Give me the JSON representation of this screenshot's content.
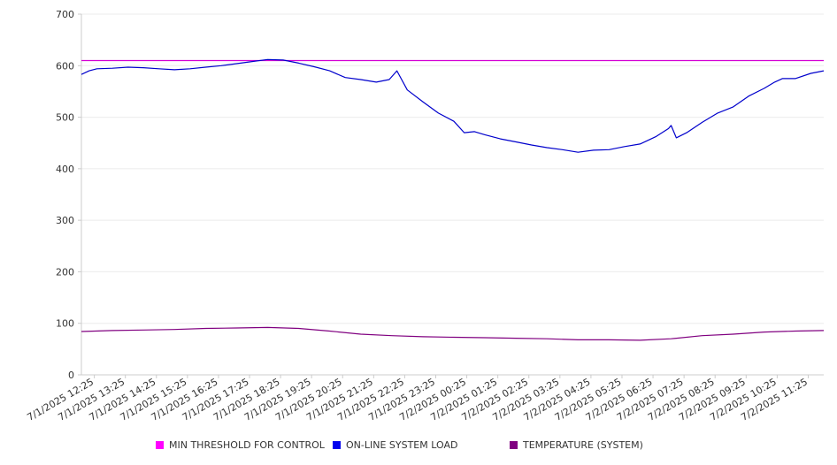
{
  "chart_data": {
    "type": "line",
    "title": "",
    "xlabel": "",
    "ylabel": "",
    "ylim": [
      0,
      700
    ],
    "yticks": [
      0,
      100,
      200,
      300,
      400,
      500,
      600,
      700
    ],
    "grid": true,
    "legend_position": "bottom",
    "x_tick_labels": [
      "7/1/2025 12:25",
      "7/1/2025 13:25",
      "7/1/2025 14:25",
      "7/1/2025 15:25",
      "7/1/2025 16:25",
      "7/1/2025 17:25",
      "7/1/2025 18:25",
      "7/1/2025 19:25",
      "7/1/2025 20:25",
      "7/1/2025 21:25",
      "7/1/2025 22:25",
      "7/1/2025 23:25",
      "7/2/2025 00:25",
      "7/2/2025 01:25",
      "7/2/2025 02:25",
      "7/2/2025 03:25",
      "7/2/2025 04:25",
      "7/2/2025 05:25",
      "7/2/2025 06:25",
      "7/2/2025 07:25",
      "7/2/2025 08:25",
      "7/2/2025 09:25",
      "7/2/2025 10:25",
      "7/2/2025 11:25"
    ],
    "x_range": [
      "7/1/2025 12:00",
      "7/2/2025 11:55"
    ],
    "series": [
      {
        "name": "MIN THRESHOLD FOR CONTROL",
        "color": "#d400d4",
        "x": [
          "7/1/2025 12:00",
          "7/2/2025 11:55"
        ],
        "values": [
          610,
          610
        ]
      },
      {
        "name": "ON-LINE SYSTEM LOAD",
        "color": "#0000cc",
        "x": [
          "7/1/2025 12:00",
          "7/1/2025 12:15",
          "7/1/2025 12:30",
          "7/1/2025 13:00",
          "7/1/2025 13:30",
          "7/1/2025 14:00",
          "7/1/2025 14:30",
          "7/1/2025 15:00",
          "7/1/2025 15:30",
          "7/1/2025 16:00",
          "7/1/2025 16:30",
          "7/1/2025 17:00",
          "7/1/2025 17:30",
          "7/1/2025 18:00",
          "7/1/2025 18:30",
          "7/1/2025 19:00",
          "7/1/2025 19:30",
          "7/1/2025 20:00",
          "7/1/2025 20:30",
          "7/1/2025 21:00",
          "7/1/2025 21:30",
          "7/1/2025 21:55",
          "7/1/2025 22:10",
          "7/1/2025 22:30",
          "7/1/2025 23:00",
          "7/1/2025 23:30",
          "7/2/2025 00:00",
          "7/2/2025 00:20",
          "7/2/2025 00:40",
          "7/2/2025 01:00",
          "7/2/2025 01:30",
          "7/2/2025 02:00",
          "7/2/2025 02:30",
          "7/2/2025 03:00",
          "7/2/2025 03:30",
          "7/2/2025 04:00",
          "7/2/2025 04:30",
          "7/2/2025 05:00",
          "7/2/2025 05:30",
          "7/2/2025 06:00",
          "7/2/2025 06:30",
          "7/2/2025 06:55",
          "7/2/2025 07:00",
          "7/2/2025 07:10",
          "7/2/2025 07:30",
          "7/2/2025 08:00",
          "7/2/2025 08:30",
          "7/2/2025 09:00",
          "7/2/2025 09:30",
          "7/2/2025 10:00",
          "7/2/2025 10:20",
          "7/2/2025 10:35",
          "7/2/2025 11:00",
          "7/2/2025 11:30",
          "7/2/2025 11:55"
        ],
        "values": [
          583,
          590,
          594,
          595,
          597,
          596,
          594,
          592,
          594,
          597,
          600,
          604,
          608,
          612,
          611,
          605,
          598,
          590,
          577,
          573,
          568,
          573,
          590,
          553,
          530,
          508,
          492,
          470,
          472,
          466,
          458,
          452,
          446,
          441,
          437,
          432,
          436,
          437,
          443,
          448,
          462,
          478,
          484,
          460,
          470,
          490,
          508,
          520,
          541,
          556,
          568,
          575,
          575,
          585,
          590
        ]
      },
      {
        "name": "TEMPERATURE (SYSTEM)",
        "color": "#800080",
        "x": [
          "7/1/2025 12:00",
          "7/1/2025 13:00",
          "7/1/2025 14:00",
          "7/1/2025 15:00",
          "7/1/2025 16:00",
          "7/1/2025 17:00",
          "7/1/2025 18:00",
          "7/1/2025 19:00",
          "7/1/2025 20:00",
          "7/1/2025 21:00",
          "7/1/2025 22:00",
          "7/1/2025 23:00",
          "7/2/2025 00:00",
          "7/2/2025 01:00",
          "7/2/2025 02:00",
          "7/2/2025 03:00",
          "7/2/2025 04:00",
          "7/2/2025 05:00",
          "7/2/2025 06:00",
          "7/2/2025 07:00",
          "7/2/2025 08:00",
          "7/2/2025 09:00",
          "7/2/2025 10:00",
          "7/2/2025 11:00",
          "7/2/2025 11:55"
        ],
        "values": [
          84,
          86,
          87,
          88,
          90,
          91,
          92,
          90,
          85,
          79,
          76,
          74,
          73,
          72,
          71,
          70,
          68,
          68,
          67,
          70,
          76,
          79,
          83,
          85,
          86
        ]
      }
    ]
  }
}
